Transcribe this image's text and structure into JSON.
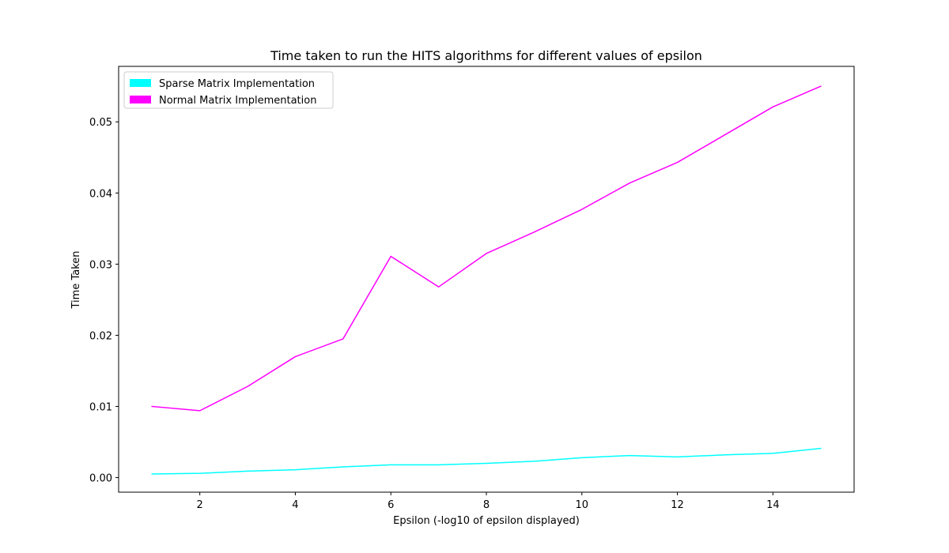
{
  "chart_data": {
    "type": "line",
    "title": "Time taken to run the HITS algorithms for different values of epsilon",
    "xlabel": "Epsilon (-log10 of epsilon displayed)",
    "ylabel": "Time Taken",
    "xlim": [
      0.3,
      15.7
    ],
    "ylim": [
      -0.00205,
      0.0578
    ],
    "x": [
      1,
      2,
      3,
      4,
      5,
      6,
      7,
      8,
      9,
      10,
      11,
      12,
      13,
      14,
      15
    ],
    "xticks": [
      2,
      4,
      6,
      8,
      10,
      12,
      14
    ],
    "yticks": [
      0.0,
      0.01,
      0.02,
      0.03,
      0.04,
      0.05
    ],
    "ytick_labels": [
      "0.00",
      "0.01",
      "0.02",
      "0.03",
      "0.04",
      "0.05"
    ],
    "legend_position": "top-left",
    "grid": false,
    "series": [
      {
        "name": "Sparse Matrix Implementation",
        "color": "#00ffff",
        "values": [
          0.0005,
          0.0006,
          0.0009,
          0.0011,
          0.0015,
          0.0018,
          0.0018,
          0.002,
          0.0023,
          0.0028,
          0.0031,
          0.0029,
          0.0032,
          0.0034,
          0.0041
        ]
      },
      {
        "name": "Normal Matrix Implementation",
        "color": "#ff00ff",
        "values": [
          0.01,
          0.0094,
          0.0128,
          0.017,
          0.0195,
          0.0311,
          0.0268,
          0.0315,
          0.0345,
          0.0377,
          0.0414,
          0.0443,
          0.0482,
          0.0521,
          0.055
        ]
      }
    ]
  }
}
